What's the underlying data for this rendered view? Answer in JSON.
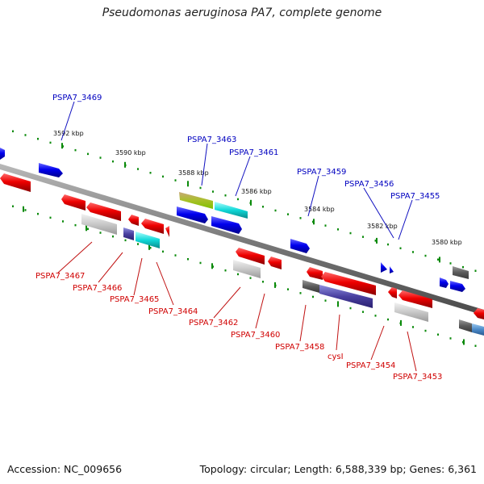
{
  "title": "Pseudomonas aeruginosa PA7, complete genome",
  "accession": "Accession: NC_009656",
  "topology": "Topology: circular; Length: 6,588,339 bp; Genes: 6,361",
  "colors": {
    "backbone": "#7d7d7d",
    "tick_green": "#0a8a0a",
    "forward_gene": "#1010d0",
    "reverse_gene": "#e00000",
    "label_blue": "#0000c0",
    "label_red": "#d00000"
  },
  "scale_labels": [
    "3592 kbp",
    "3590 kbp",
    "3588 kbp",
    "3586 kbp",
    "3584 kbp",
    "3582 kbp",
    "3580 kbp"
  ],
  "forward_labels": [
    "PSPA7_3469",
    "PSPA7_3463",
    "PSPA7_3461",
    "PSPA7_3459",
    "PSPA7_3456",
    "PSPA7_3455"
  ],
  "reverse_labels": [
    "PSPA7_3467",
    "PSPA7_3466",
    "PSPA7_3465",
    "PSPA7_3464",
    "PSPA7_3462",
    "PSPA7_3460",
    "PSPA7_3458",
    "cysI",
    "PSPA7_3454",
    "PSPA7_3453"
  ]
}
